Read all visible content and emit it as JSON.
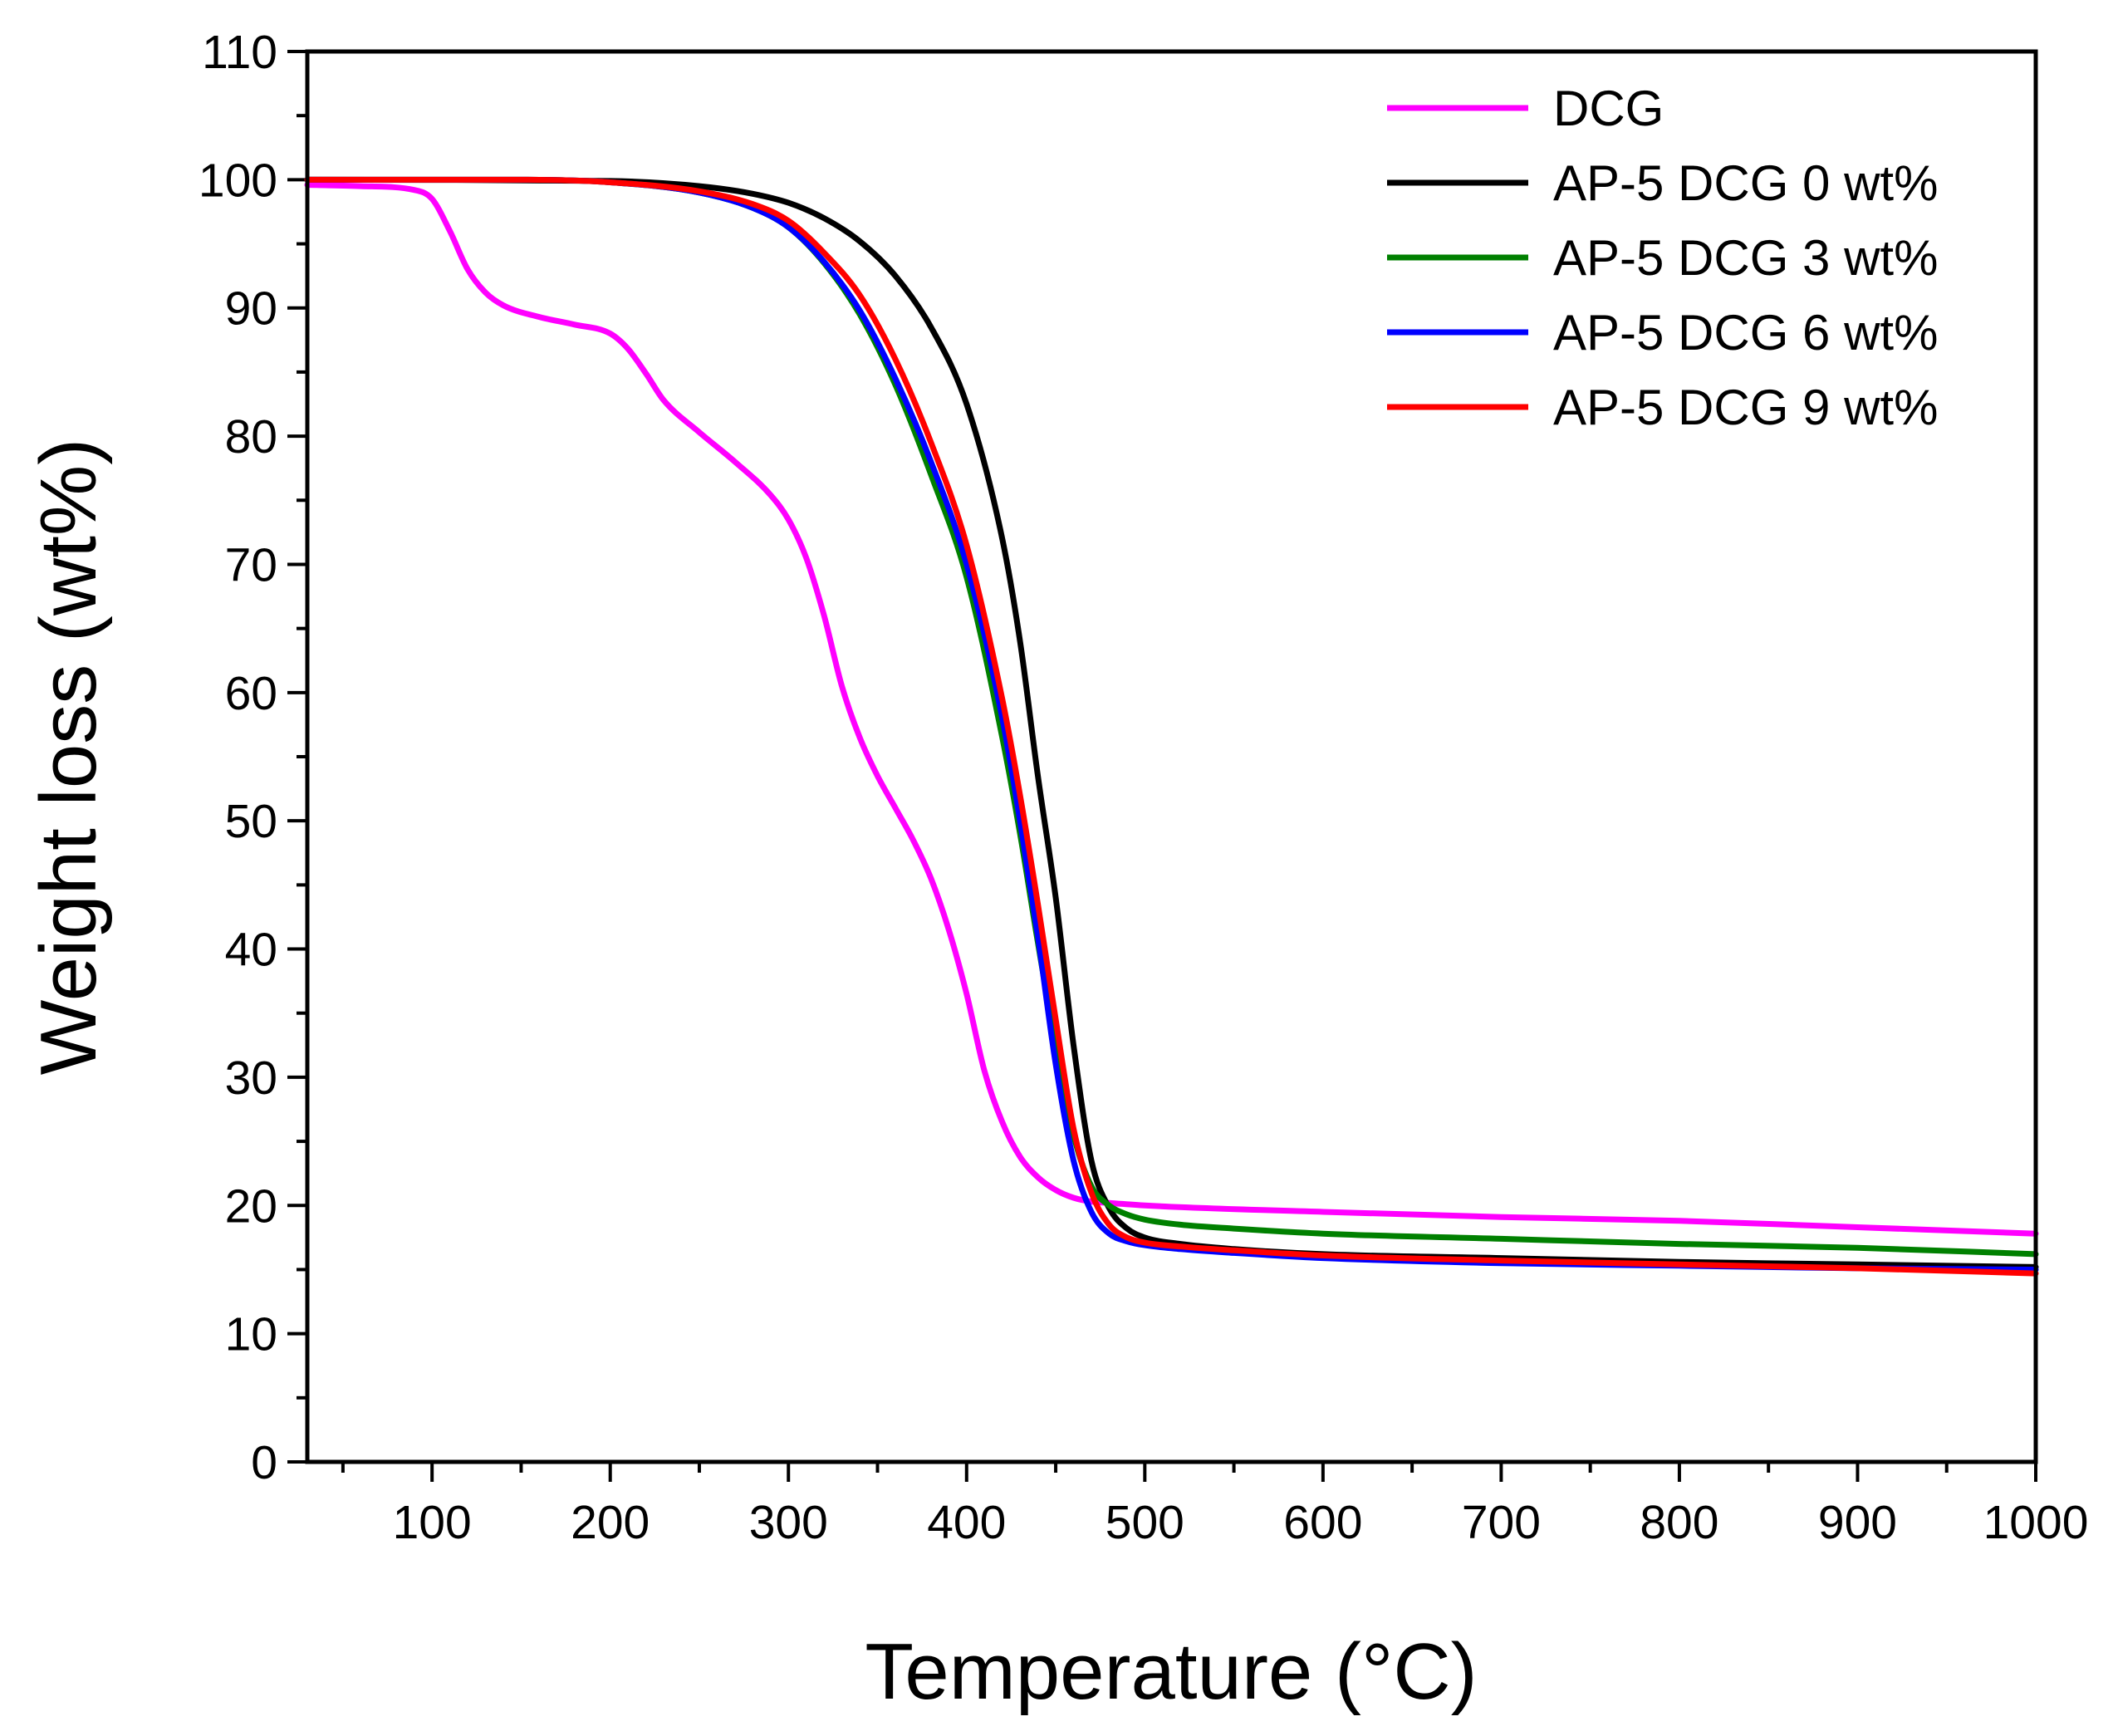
{
  "chart_data": {
    "type": "line",
    "title": "",
    "xlabel": "Temperature (°C)",
    "ylabel": "Weight loss (wt%)",
    "xlim": [
      30,
      1000
    ],
    "ylim": [
      0,
      110
    ],
    "xticks": [
      100,
      200,
      300,
      400,
      500,
      600,
      700,
      800,
      900,
      1000
    ],
    "xtick_labels": [
      "100",
      "200",
      "300",
      "400",
      "500",
      "600",
      "700",
      "800",
      "900",
      "1000"
    ],
    "yticks": [
      0,
      10,
      20,
      30,
      40,
      50,
      60,
      70,
      80,
      90,
      100,
      110
    ],
    "ytick_labels": [
      "0",
      "10",
      "20",
      "30",
      "40",
      "50",
      "60",
      "70",
      "80",
      "90",
      "100",
      "110"
    ],
    "grid": false,
    "legend_position": "top-right",
    "series": [
      {
        "name": "DCG",
        "color": "#ff00ff",
        "x": [
          30,
          60,
          90,
          100,
          110,
          120,
          130,
          140,
          160,
          180,
          200,
          210,
          220,
          230,
          250,
          270,
          290,
          300,
          310,
          320,
          330,
          340,
          350,
          360,
          370,
          380,
          390,
          400,
          410,
          420,
          430,
          440,
          450,
          460,
          470,
          480,
          500,
          600,
          700,
          800,
          900,
          1000
        ],
        "y": [
          99.6,
          99.5,
          99.2,
          98.5,
          96,
          93,
          91.2,
          90.2,
          89.3,
          88.7,
          88,
          86.8,
          84.9,
          82.8,
          80.3,
          78,
          75.4,
          73.5,
          70.5,
          66,
          60.5,
          56.5,
          53.5,
          51,
          48.5,
          45.5,
          41.5,
          36.5,
          30.5,
          26.5,
          23.8,
          22.2,
          21.2,
          20.6,
          20.3,
          20.2,
          20.0,
          19.5,
          19.1,
          18.8,
          18.3,
          17.8
        ]
      },
      {
        "name": "AP-5 DCG 0 wt%",
        "color": "#000000",
        "x": [
          30,
          200,
          250,
          280,
          300,
          320,
          340,
          360,
          380,
          400,
          420,
          430,
          440,
          450,
          460,
          470,
          480,
          490,
          500,
          520,
          550,
          600,
          700,
          800,
          900,
          1000
        ],
        "y": [
          100,
          99.9,
          99.5,
          98.9,
          98.2,
          97,
          95.2,
          92.5,
          88.5,
          82.5,
          72,
          64,
          53.5,
          44,
          32.5,
          23.5,
          19.8,
          18.2,
          17.5,
          17,
          16.6,
          16.2,
          15.9,
          15.6,
          15.4,
          15.2
        ]
      },
      {
        "name": "AP-5 DCG 3 wt%",
        "color": "#008000",
        "x": [
          30,
          150,
          200,
          250,
          280,
          300,
          320,
          340,
          360,
          380,
          400,
          420,
          430,
          440,
          450,
          460,
          470,
          480,
          490,
          500,
          520,
          550,
          600,
          700,
          800,
          900,
          1000
        ],
        "y": [
          100,
          100,
          99.8,
          99,
          97.8,
          96.3,
          93.5,
          89.5,
          84,
          77,
          69,
          56.5,
          49,
          40.5,
          32.5,
          25.5,
          21.5,
          20,
          19.3,
          18.9,
          18.5,
          18.2,
          17.8,
          17.4,
          17,
          16.7,
          16.2
        ]
      },
      {
        "name": "AP-5 DCG 6 wt%",
        "color": "#0000ff",
        "x": [
          30,
          150,
          200,
          250,
          280,
          300,
          320,
          340,
          360,
          380,
          400,
          420,
          430,
          440,
          450,
          460,
          470,
          480,
          490,
          500,
          520,
          550,
          600,
          700,
          800,
          900,
          1000
        ],
        "y": [
          100,
          100,
          99.8,
          99,
          97.8,
          96.3,
          93.6,
          89.8,
          84.5,
          78,
          70,
          58,
          50,
          41,
          31,
          23.5,
          19.5,
          17.8,
          17.2,
          16.9,
          16.6,
          16.3,
          15.9,
          15.5,
          15.3,
          15.1,
          15
        ]
      },
      {
        "name": "AP-5 DCG 9 wt%",
        "color": "#ff0000",
        "x": [
          30,
          150,
          200,
          250,
          280,
          300,
          320,
          340,
          360,
          380,
          400,
          420,
          430,
          440,
          450,
          460,
          470,
          480,
          490,
          500,
          520,
          550,
          600,
          700,
          800,
          900,
          1000
        ],
        "y": [
          100,
          100,
          99.8,
          99.1,
          98.1,
          96.8,
          94.3,
          91,
          86,
          79.5,
          71.5,
          59.5,
          52,
          43.5,
          34.5,
          26,
          21,
          18.5,
          17.5,
          17.1,
          16.8,
          16.5,
          16.1,
          15.7,
          15.4,
          15.1,
          14.7
        ]
      }
    ]
  }
}
